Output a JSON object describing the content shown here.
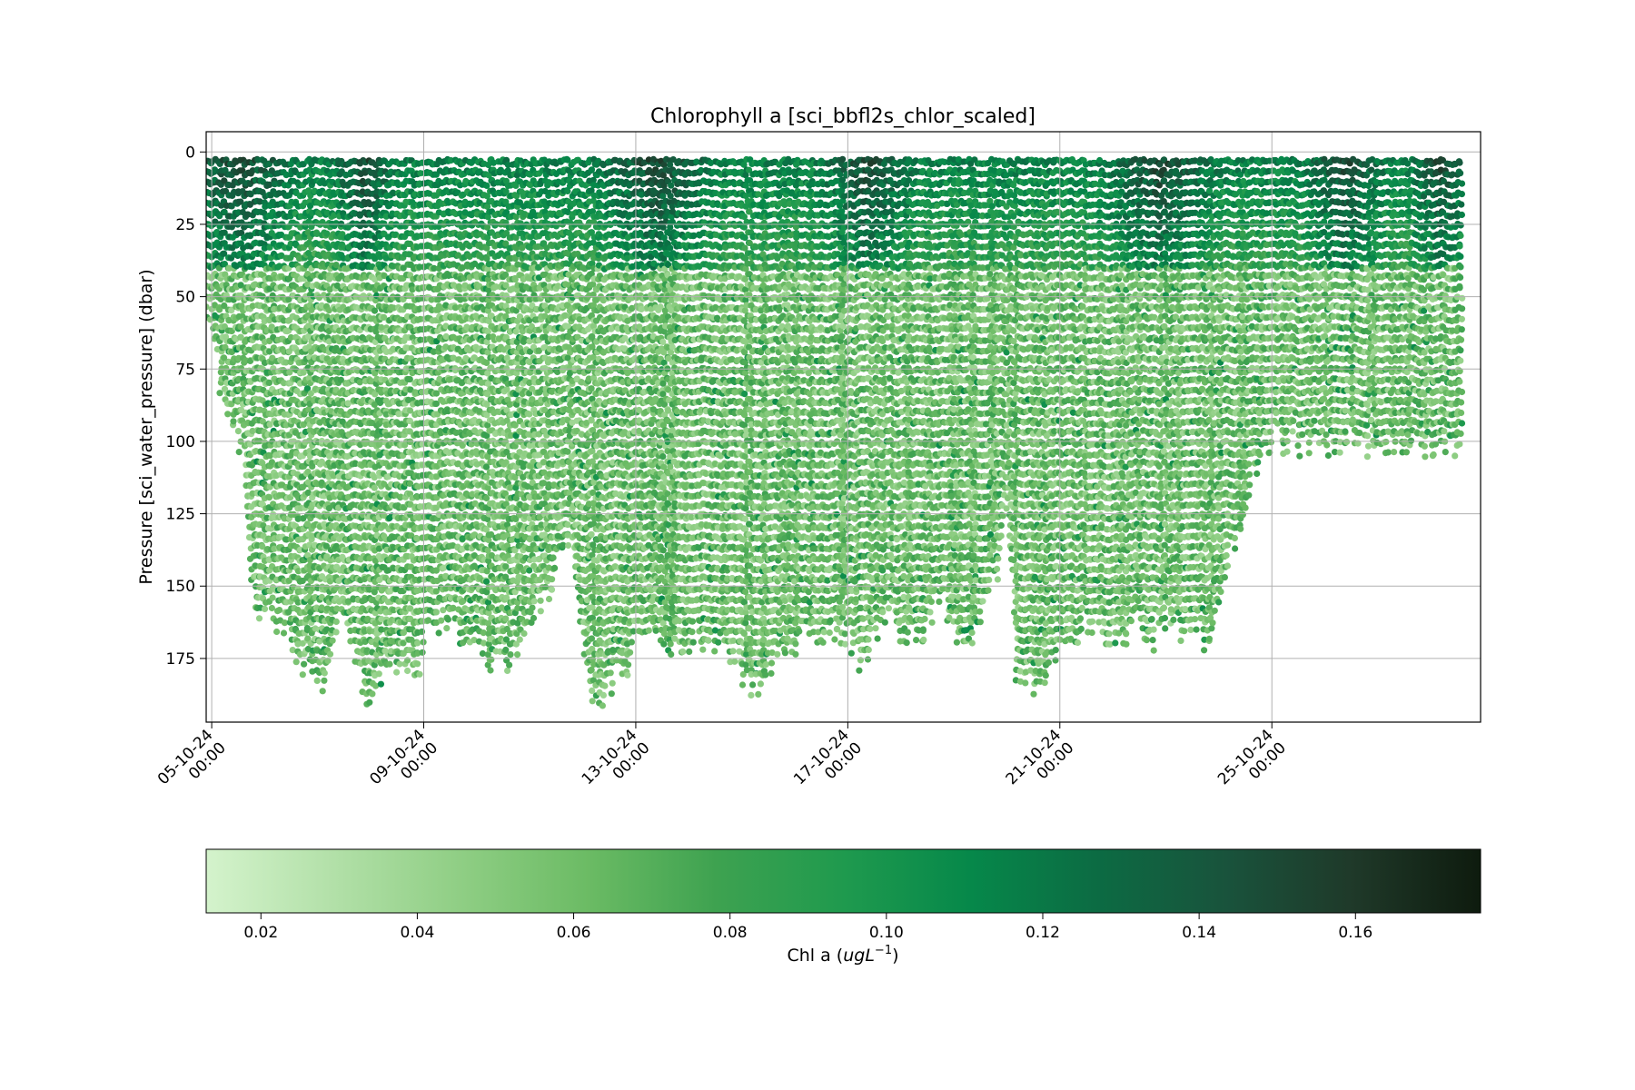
{
  "chart_data": {
    "type": "scatter",
    "title": "Chlorophyll a [sci_bbfl2s_chlor_scaled]",
    "ylabel": "Pressure [sci_water_pressure] (dbar)",
    "xlabel": "",
    "grid": true,
    "y_inverted": true,
    "ylim": [
      197,
      -7
    ],
    "xlim": [
      "2024-10-04T21:30",
      "2024-10-28T22:30"
    ],
    "y_ticks": [
      0,
      25,
      50,
      75,
      100,
      125,
      150,
      175
    ],
    "y_tick_labels": [
      "0",
      "25",
      "50",
      "75",
      "100",
      "125",
      "150",
      "175"
    ],
    "x_ticks": [
      {
        "date": "2024-10-05T00:00",
        "line1": "05-10-24",
        "line2": "00:00"
      },
      {
        "date": "2024-10-09T00:00",
        "line1": "09-10-24",
        "line2": "00:00"
      },
      {
        "date": "2024-10-13T00:00",
        "line1": "13-10-24",
        "line2": "00:00"
      },
      {
        "date": "2024-10-17T00:00",
        "line1": "17-10-24",
        "line2": "00:00"
      },
      {
        "date": "2024-10-21T00:00",
        "line1": "21-10-24",
        "line2": "00:00"
      },
      {
        "date": "2024-10-25T00:00",
        "line1": "25-10-24",
        "line2": "00:00"
      }
    ],
    "colorbar": {
      "colormap": "Greens",
      "orientation": "horizontal",
      "label_text": "Chl a (",
      "label_math": "ugL",
      "label_exponent": "−1",
      "label_close": ")",
      "range": [
        0.013,
        0.176
      ],
      "ticks": [
        0.02,
        0.04,
        0.06,
        0.08,
        0.1,
        0.12,
        0.14,
        0.16
      ],
      "tick_labels": [
        "0.02",
        "0.04",
        "0.06",
        "0.08",
        "0.10",
        "0.12",
        "0.14",
        "0.16"
      ],
      "colors": [
        "#d4f3cc",
        "#b2e0a8",
        "#8fce84",
        "#6bbb64",
        "#3ea250",
        "#1f9a4e",
        "#06884a",
        "#0c6b43",
        "#19533c",
        "#1f3929",
        "#0e1b0e"
      ]
    },
    "profile_depth_envelope": {
      "description_units": "days since x-axis start vs max pressure (dbar)",
      "points": [
        [
          0.0,
          55
        ],
        [
          0.15,
          62
        ],
        [
          0.35,
          90
        ],
        [
          0.55,
          100
        ],
        [
          0.7,
          100
        ],
        [
          0.85,
          150
        ],
        [
          1.0,
          160
        ],
        [
          1.25,
          160
        ],
        [
          1.5,
          165
        ],
        [
          1.75,
          172
        ],
        [
          2.0,
          180
        ],
        [
          2.3,
          185
        ],
        [
          2.5,
          160
        ],
        [
          2.7,
          170
        ],
        [
          3.0,
          185
        ],
        [
          3.2,
          185
        ],
        [
          3.5,
          182
        ],
        [
          3.75,
          178
        ],
        [
          4.0,
          175
        ],
        [
          4.2,
          165
        ],
        [
          4.5,
          160
        ],
        [
          4.75,
          165
        ],
        [
          5.0,
          168
        ],
        [
          5.25,
          170
        ],
        [
          5.5,
          180
        ],
        [
          5.7,
          175
        ],
        [
          5.9,
          165
        ],
        [
          6.1,
          160
        ],
        [
          6.3,
          155
        ],
        [
          6.5,
          150
        ],
        [
          6.7,
          135
        ],
        [
          6.9,
          130
        ],
        [
          7.1,
          170
        ],
        [
          7.3,
          185
        ],
        [
          7.5,
          186
        ],
        [
          7.7,
          180
        ],
        [
          7.95,
          185
        ],
        [
          8.1,
          165
        ],
        [
          8.4,
          162
        ],
        [
          8.7,
          168
        ],
        [
          9.0,
          170
        ],
        [
          9.3,
          165
        ],
        [
          9.6,
          170
        ],
        [
          9.9,
          172
        ],
        [
          10.1,
          180
        ],
        [
          10.4,
          185
        ],
        [
          10.6,
          180
        ],
        [
          10.8,
          175
        ],
        [
          11.1,
          170
        ],
        [
          11.3,
          165
        ],
        [
          11.6,
          168
        ],
        [
          11.9,
          165
        ],
        [
          12.1,
          170
        ],
        [
          12.4,
          175
        ],
        [
          12.7,
          160
        ],
        [
          12.9,
          155
        ],
        [
          13.1,
          165
        ],
        [
          13.4,
          170
        ],
        [
          13.7,
          160
        ],
        [
          13.9,
          152
        ],
        [
          14.2,
          168
        ],
        [
          14.5,
          165
        ],
        [
          14.75,
          150
        ],
        [
          14.95,
          145
        ],
        [
          15.1,
          120
        ],
        [
          15.3,
          180
        ],
        [
          15.6,
          185
        ],
        [
          15.9,
          178
        ],
        [
          16.1,
          175
        ],
        [
          16.4,
          165
        ],
        [
          16.7,
          160
        ],
        [
          17.0,
          165
        ],
        [
          17.3,
          170
        ],
        [
          17.5,
          158
        ],
        [
          17.8,
          168
        ],
        [
          18.0,
          165
        ],
        [
          18.2,
          162
        ],
        [
          18.4,
          165
        ],
        [
          18.6,
          160
        ],
        [
          18.8,
          168
        ],
        [
          19.0,
          168
        ],
        [
          19.1,
          155
        ],
        [
          19.3,
          140
        ],
        [
          19.5,
          128
        ],
        [
          19.7,
          115
        ],
        [
          19.9,
          103
        ],
        [
          20.1,
          100
        ],
        [
          20.5,
          100
        ],
        [
          21.0,
          100
        ],
        [
          21.5,
          100
        ],
        [
          22.0,
          100
        ],
        [
          22.5,
          100
        ],
        [
          23.0,
          100
        ],
        [
          23.7,
          100
        ]
      ]
    }
  }
}
